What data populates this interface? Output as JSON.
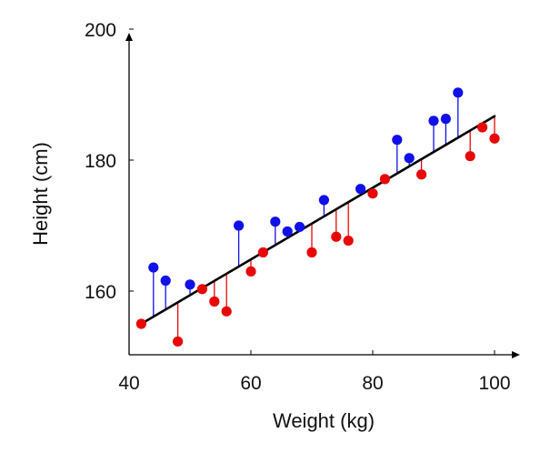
{
  "chart_data": {
    "type": "scatter",
    "title": "",
    "xlabel": "Weight (kg)",
    "ylabel": "Height (cm)",
    "xlim": [
      40,
      104
    ],
    "ylim": [
      150,
      200
    ],
    "xticks": [
      40,
      60,
      80,
      100
    ],
    "yticks": [
      160,
      180,
      200
    ],
    "grid": false,
    "legend": "none",
    "regression_line": {
      "x": [
        42,
        100
      ],
      "y": [
        155.0,
        186.7
      ],
      "color": "#000000"
    },
    "series": [
      {
        "color": "#1010e8",
        "points": [
          {
            "x": 44,
            "y": 163.6
          },
          {
            "x": 46,
            "y": 161.6
          },
          {
            "x": 50,
            "y": 161.0
          },
          {
            "x": 58,
            "y": 170.0
          },
          {
            "x": 64,
            "y": 170.6
          },
          {
            "x": 66,
            "y": 169.1
          },
          {
            "x": 68,
            "y": 169.8
          },
          {
            "x": 72,
            "y": 173.9
          },
          {
            "x": 78,
            "y": 175.6
          },
          {
            "x": 84,
            "y": 183.1
          },
          {
            "x": 86,
            "y": 180.3
          },
          {
            "x": 90,
            "y": 186.0
          },
          {
            "x": 92,
            "y": 186.3
          },
          {
            "x": 94,
            "y": 190.3
          }
        ]
      },
      {
        "color": "#e80808",
        "points": [
          {
            "x": 42,
            "y": 155.0
          },
          {
            "x": 48,
            "y": 152.3
          },
          {
            "x": 52,
            "y": 160.3
          },
          {
            "x": 54,
            "y": 158.4
          },
          {
            "x": 56,
            "y": 156.9
          },
          {
            "x": 60,
            "y": 163.0
          },
          {
            "x": 62,
            "y": 165.9
          },
          {
            "x": 70,
            "y": 165.9
          },
          {
            "x": 74,
            "y": 168.3
          },
          {
            "x": 76,
            "y": 167.7
          },
          {
            "x": 80,
            "y": 174.9
          },
          {
            "x": 82,
            "y": 177.1
          },
          {
            "x": 88,
            "y": 177.8
          },
          {
            "x": 96,
            "y": 180.6
          },
          {
            "x": 98,
            "y": 185.0
          },
          {
            "x": 100,
            "y": 183.3
          }
        ]
      }
    ]
  }
}
